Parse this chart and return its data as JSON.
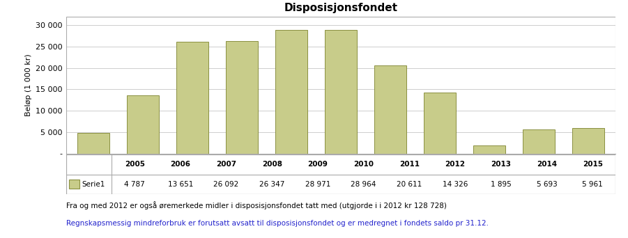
{
  "title": "Disposisjonsfondet",
  "categories": [
    "2005",
    "2006",
    "2007",
    "2008",
    "2009",
    "2010",
    "2011",
    "2012",
    "2013",
    "2014",
    "2015"
  ],
  "values": [
    4787,
    13651,
    26092,
    26347,
    28971,
    28964,
    20611,
    14326,
    1895,
    5693,
    5961
  ],
  "val_labels": [
    "4 787",
    "13 651",
    "26 092",
    "26 347",
    "28 971",
    "28 964",
    "20 611",
    "14 326",
    "1 895",
    "5 693",
    "5 961"
  ],
  "bar_color": "#c8cc8a",
  "bar_edge_color": "#8a9040",
  "ylabel": "Beløp (1 000 kr)",
  "ylim": [
    0,
    32000
  ],
  "yticks": [
    0,
    5000,
    10000,
    15000,
    20000,
    25000,
    30000
  ],
  "ytick_labels": [
    "-",
    "5 000",
    "10 000",
    "15 000",
    "20 000",
    "25 000",
    "30 000"
  ],
  "legend_label": "Serie1",
  "legend_color": "#c8cc8a",
  "legend_edge_color": "#8a9040",
  "footnote1": "Fra og med 2012 er også øremerkede midler i disposisjonsfondet tatt med (utgjorde i i 2012 kr 128 728)",
  "footnote2": "Regnskapsmessig mindreforbruk er forutsatt avsatt til disposisjonsfondet og er medregnet i fondets saldo pr 31.12.",
  "footnote2_color": "#2222cc",
  "background_color": "#ffffff",
  "plot_bg_color": "#ffffff",
  "grid_color": "#bbbbbb",
  "border_color": "#aaaaaa",
  "title_fontsize": 11,
  "axis_fontsize": 8,
  "tick_fontsize": 8,
  "table_fontsize": 7.5,
  "footnote_fontsize": 7.5
}
